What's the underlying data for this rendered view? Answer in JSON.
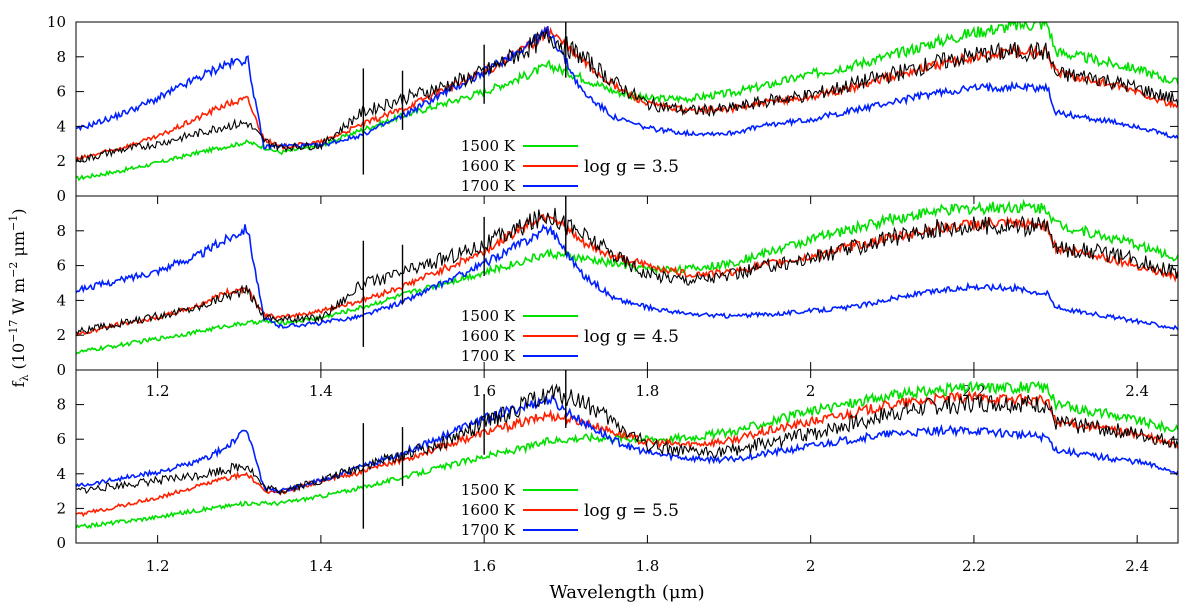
{
  "figure": {
    "ylabel": "f",
    "ylabel_sub": "λ",
    "ylabel_rest": " (10",
    "ylabel_exp1": "−17",
    "ylabel_mid": " W m",
    "ylabel_exp2": "−2",
    "ylabel_mid2": " μm",
    "ylabel_exp3": "−1",
    "ylabel_end": ")",
    "xlabel": "Wavelength (μm)"
  },
  "colors": {
    "observed": "#000000",
    "1500 K": "#00e000",
    "1600 K": "#ff2000",
    "1700 K": "#0020ff"
  },
  "chart_data": [
    {
      "type": "line",
      "panel": "top",
      "annotation": "log g = 3.5",
      "xlim": [
        1.1,
        2.45
      ],
      "ylim": [
        0,
        10
      ],
      "yticks": [
        0,
        2,
        4,
        6,
        8,
        10
      ],
      "xticks": [],
      "x": [
        1.1,
        1.15,
        1.2,
        1.25,
        1.28,
        1.31,
        1.33,
        1.35,
        1.4,
        1.45,
        1.5,
        1.55,
        1.6,
        1.65,
        1.68,
        1.72,
        1.76,
        1.8,
        1.85,
        1.9,
        1.95,
        2.0,
        2.05,
        2.1,
        2.15,
        2.2,
        2.25,
        2.29,
        2.3,
        2.35,
        2.4,
        2.45
      ],
      "series": [
        {
          "name": "observed",
          "values": [
            2.0,
            2.6,
            3.0,
            3.6,
            4.0,
            4.2,
            3.2,
            2.8,
            2.9,
            4.8,
            5.6,
            6.3,
            7.1,
            8.4,
            9.2,
            8.0,
            6.5,
            5.3,
            4.9,
            5.0,
            5.5,
            5.8,
            6.4,
            7.0,
            7.6,
            8.1,
            8.3,
            8.3,
            7.0,
            6.8,
            6.2,
            5.5
          ]
        },
        {
          "name": "1500 K",
          "values": [
            1.0,
            1.4,
            1.9,
            2.5,
            2.8,
            3.1,
            2.8,
            2.5,
            2.9,
            3.8,
            4.6,
            5.3,
            6.0,
            6.9,
            7.5,
            6.8,
            6.0,
            5.6,
            5.6,
            5.9,
            6.4,
            7.0,
            7.5,
            8.1,
            8.8,
            9.4,
            9.8,
            9.9,
            8.3,
            7.8,
            7.3,
            6.5
          ]
        },
        {
          "name": "1600 K",
          "values": [
            2.1,
            2.7,
            3.4,
            4.5,
            5.2,
            5.6,
            3.3,
            2.8,
            3.1,
            4.1,
            5.0,
            6.1,
            7.1,
            8.5,
            9.5,
            7.8,
            6.3,
            5.3,
            4.9,
            5.0,
            5.4,
            5.7,
            6.2,
            6.9,
            7.5,
            8.0,
            8.3,
            8.3,
            7.1,
            6.6,
            6.0,
            5.1
          ]
        },
        {
          "name": "1700 K",
          "values": [
            3.8,
            4.6,
            5.6,
            6.8,
            7.5,
            7.9,
            2.8,
            2.9,
            2.9,
            3.5,
            4.6,
            5.9,
            7.1,
            8.6,
            9.5,
            6.0,
            4.5,
            3.9,
            3.6,
            3.6,
            4.1,
            4.4,
            4.9,
            5.4,
            5.9,
            6.2,
            6.3,
            6.2,
            4.8,
            4.4,
            4.0,
            3.3
          ]
        }
      ]
    },
    {
      "type": "line",
      "panel": "middle",
      "annotation": "log g = 4.5",
      "xlim": [
        1.1,
        2.45
      ],
      "ylim": [
        0,
        10
      ],
      "yticks": [
        0,
        2,
        4,
        6,
        8
      ],
      "xticks": [
        1.2,
        1.4,
        1.6,
        1.8,
        2,
        2.2,
        2.4
      ],
      "x": [
        1.1,
        1.15,
        1.2,
        1.25,
        1.28,
        1.31,
        1.33,
        1.35,
        1.4,
        1.45,
        1.5,
        1.55,
        1.6,
        1.65,
        1.68,
        1.72,
        1.76,
        1.8,
        1.85,
        1.9,
        1.95,
        2.0,
        2.05,
        2.1,
        2.15,
        2.2,
        2.25,
        2.29,
        2.3,
        2.35,
        2.4,
        2.45
      ],
      "series": [
        {
          "name": "observed",
          "values": [
            2.2,
            2.6,
            3.1,
            3.6,
            4.2,
            4.6,
            3.1,
            2.9,
            3.0,
            4.9,
            5.6,
            6.4,
            7.2,
            8.3,
            9.0,
            7.8,
            6.6,
            5.5,
            5.2,
            5.4,
            6.0,
            6.4,
            7.0,
            7.6,
            8.1,
            8.3,
            8.3,
            8.2,
            7.0,
            6.8,
            6.3,
            5.6
          ]
        },
        {
          "name": "1500 K",
          "values": [
            1.0,
            1.4,
            1.8,
            2.2,
            2.5,
            2.7,
            2.8,
            2.7,
            3.0,
            3.6,
            4.3,
            5.0,
            5.6,
            6.3,
            6.7,
            6.4,
            6.1,
            5.8,
            5.8,
            6.1,
            6.8,
            7.5,
            8.1,
            8.7,
            9.1,
            9.3,
            9.4,
            9.3,
            8.4,
            7.8,
            7.2,
            6.4
          ]
        },
        {
          "name": "1600 K",
          "values": [
            2.0,
            2.6,
            3.0,
            3.7,
            4.4,
            4.7,
            3.2,
            3.0,
            3.4,
            4.0,
            4.8,
            5.8,
            6.8,
            8.3,
            9.0,
            7.3,
            6.5,
            6.0,
            5.5,
            5.6,
            6.1,
            6.5,
            7.1,
            7.6,
            8.1,
            8.4,
            8.4,
            8.3,
            7.0,
            6.6,
            6.0,
            5.3
          ]
        },
        {
          "name": "1700 K",
          "values": [
            4.6,
            5.1,
            5.7,
            6.6,
            7.4,
            8.2,
            3.0,
            2.5,
            2.7,
            3.1,
            3.9,
            5.0,
            6.1,
            7.4,
            8.2,
            5.5,
            4.1,
            3.6,
            3.2,
            3.1,
            3.2,
            3.4,
            3.6,
            4.1,
            4.5,
            4.8,
            4.7,
            4.4,
            3.6,
            3.2,
            2.8,
            2.4
          ]
        }
      ]
    },
    {
      "type": "line",
      "panel": "bottom",
      "annotation": "log g = 5.5",
      "xlim": [
        1.1,
        2.45
      ],
      "ylim": [
        0,
        10
      ],
      "yticks": [
        0,
        2,
        4,
        6,
        8
      ],
      "xticks": [
        1.2,
        1.4,
        1.6,
        1.8,
        2,
        2.2,
        2.4
      ],
      "x": [
        1.1,
        1.15,
        1.2,
        1.25,
        1.28,
        1.31,
        1.33,
        1.35,
        1.4,
        1.45,
        1.5,
        1.55,
        1.6,
        1.65,
        1.68,
        1.72,
        1.76,
        1.8,
        1.85,
        1.9,
        1.95,
        2.0,
        2.05,
        2.1,
        2.15,
        2.2,
        2.25,
        2.29,
        2.3,
        2.35,
        2.4,
        2.45
      ],
      "series": [
        {
          "name": "observed",
          "values": [
            3.0,
            3.3,
            3.6,
            3.9,
            4.2,
            4.5,
            3.2,
            3.0,
            3.6,
            4.4,
            5.1,
            5.8,
            6.9,
            8.0,
            8.7,
            8.2,
            6.9,
            5.7,
            5.2,
            5.3,
            5.8,
            6.3,
            6.9,
            7.5,
            7.9,
            8.1,
            8.1,
            8.0,
            6.9,
            6.7,
            6.3,
            5.8
          ]
        },
        {
          "name": "1500 K",
          "values": [
            0.9,
            1.2,
            1.5,
            1.9,
            2.1,
            2.3,
            2.3,
            2.3,
            2.7,
            3.2,
            3.8,
            4.4,
            5.0,
            5.5,
            5.9,
            6.1,
            6.1,
            6.0,
            6.1,
            6.4,
            7.0,
            7.6,
            8.1,
            8.5,
            8.8,
            9.0,
            9.0,
            9.0,
            8.0,
            7.6,
            7.1,
            6.5
          ]
        },
        {
          "name": "1600 K",
          "values": [
            1.6,
            2.1,
            2.6,
            3.3,
            3.7,
            4.0,
            3.0,
            2.9,
            3.6,
            4.1,
            4.8,
            5.6,
            6.4,
            7.0,
            7.4,
            7.0,
            6.4,
            5.8,
            5.7,
            5.9,
            6.5,
            7.0,
            7.5,
            8.0,
            8.3,
            8.4,
            8.3,
            8.2,
            7.0,
            6.7,
            6.3,
            5.6
          ]
        },
        {
          "name": "1700 K",
          "values": [
            3.3,
            3.7,
            4.1,
            4.7,
            5.4,
            6.5,
            3.2,
            3.0,
            3.6,
            4.4,
            5.2,
            6.2,
            7.2,
            7.9,
            8.3,
            7.0,
            5.9,
            5.2,
            4.9,
            4.8,
            5.2,
            5.6,
            6.0,
            6.3,
            6.5,
            6.5,
            6.3,
            6.1,
            5.4,
            5.0,
            4.7,
            4.1
          ]
        }
      ]
    }
  ]
}
